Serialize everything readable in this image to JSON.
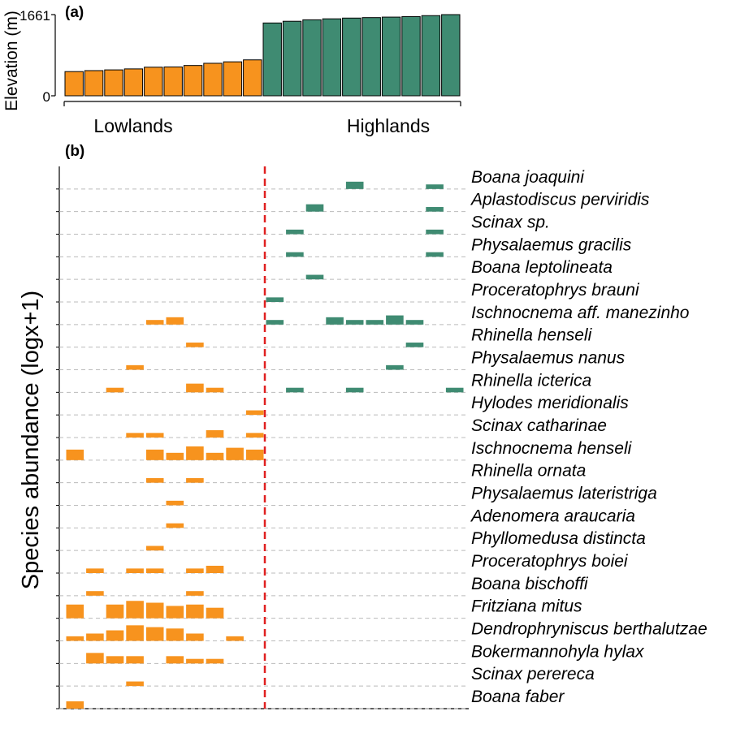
{
  "colors": {
    "lowlands": "#F7931E",
    "highlands": "#3F8B72",
    "divider": "#E02020",
    "grid": "#BBBBBB"
  },
  "chart_data": [
    {
      "panel": "(a)",
      "type": "bar",
      "ylabel": "Elevation (m)",
      "yticks": [
        "0",
        "1661"
      ],
      "ylim": [
        0,
        1661
      ],
      "groups": [
        "Lowlands",
        "Highlands"
      ],
      "sites": [
        1,
        2,
        3,
        4,
        5,
        6,
        7,
        8,
        9,
        10,
        11,
        12,
        13,
        14,
        15,
        16,
        17,
        18,
        19,
        20
      ],
      "group_of_site": [
        "Lowlands",
        "Lowlands",
        "Lowlands",
        "Lowlands",
        "Lowlands",
        "Lowlands",
        "Lowlands",
        "Lowlands",
        "Lowlands",
        "Lowlands",
        "Highlands",
        "Highlands",
        "Highlands",
        "Highlands",
        "Highlands",
        "Highlands",
        "Highlands",
        "Highlands",
        "Highlands",
        "Highlands"
      ],
      "values": [
        495,
        515,
        530,
        550,
        585,
        590,
        620,
        665,
        695,
        735,
        1490,
        1525,
        1555,
        1575,
        1590,
        1600,
        1610,
        1620,
        1640,
        1661
      ]
    },
    {
      "panel": "(b)",
      "type": "heatmap",
      "ylabel": "Species abundance (logx+1)",
      "divider_after_site": 10,
      "species": [
        "Boana joaquini",
        "Aplastodiscus perviridis",
        "Scinax sp.",
        "Physalaemus gracilis",
        "Boana leptolineata",
        "Proceratophrys brauni",
        "Ischnocnema aff. manezinho",
        "Rhinella henseli",
        "Physalaemus nanus",
        "Rhinella icterica",
        "Hylodes meridionalis",
        "Scinax catharinae",
        "Ischnocnema henseli",
        "Rhinella ornata",
        "Physalaemus lateristriga",
        "Adenomera araucaria",
        "Phyllomedusa distincta",
        "Proceratophrys boiei",
        "Boana bischoffi",
        "Fritziana mitus",
        "Dendrophryniscus berthalutzae",
        "Bokermannohyla hylax",
        "Scinax perereca",
        "Boana faber"
      ],
      "abundance": [
        [
          0,
          0,
          0,
          0,
          0,
          0,
          0,
          0,
          0,
          0,
          0,
          0,
          0,
          0,
          1.6,
          0,
          0,
          0,
          1,
          0
        ],
        [
          0,
          0,
          0,
          0,
          0,
          0,
          0,
          0,
          0,
          0,
          0,
          0,
          1.6,
          0,
          0,
          0,
          0,
          0,
          1,
          0
        ],
        [
          0,
          0,
          0,
          0,
          0,
          0,
          0,
          0,
          0,
          0,
          0,
          1,
          0,
          0,
          0,
          0,
          0,
          0,
          1,
          0
        ],
        [
          0,
          0,
          0,
          0,
          0,
          0,
          0,
          0,
          0,
          0,
          0,
          1,
          0,
          0,
          0,
          0,
          0,
          0,
          1,
          0
        ],
        [
          0,
          0,
          0,
          0,
          0,
          0,
          0,
          0,
          0,
          0,
          0,
          0,
          1,
          0,
          0,
          0,
          0,
          0,
          0,
          0
        ],
        [
          0,
          0,
          0,
          0,
          0,
          0,
          0,
          0,
          0,
          0,
          1,
          0,
          0,
          0,
          0,
          0,
          0,
          0,
          0,
          0
        ],
        [
          0,
          0,
          0,
          0,
          1,
          1.6,
          0,
          0,
          0,
          0,
          1,
          0,
          0,
          1.6,
          1,
          1,
          2,
          1,
          0,
          0
        ],
        [
          0,
          0,
          0,
          0,
          0,
          0,
          1,
          0,
          0,
          0,
          0,
          0,
          0,
          0,
          0,
          0,
          0,
          1,
          0,
          0
        ],
        [
          0,
          0,
          0,
          1,
          0,
          0,
          0,
          0,
          0,
          0,
          0,
          0,
          0,
          0,
          0,
          0,
          1,
          0,
          0,
          0
        ],
        [
          0,
          0,
          1,
          0,
          0,
          0,
          1.9,
          1,
          0,
          0,
          0,
          1,
          0,
          0,
          1,
          0,
          0,
          0,
          0,
          1
        ],
        [
          0,
          0,
          0,
          0,
          0,
          0,
          0,
          0,
          0,
          1,
          0,
          0,
          0,
          0,
          0,
          0,
          0,
          0,
          0,
          0
        ],
        [
          0,
          0,
          0,
          1,
          1,
          0,
          0,
          1.6,
          0,
          1,
          0,
          0,
          0,
          0,
          0,
          0,
          0,
          0,
          0,
          0
        ],
        [
          2.3,
          0,
          0,
          0,
          2.3,
          1.6,
          3,
          1.6,
          2.7,
          2.3,
          0,
          0,
          0,
          0,
          0,
          0,
          0,
          0,
          0,
          0
        ],
        [
          0,
          0,
          0,
          0,
          1,
          0,
          1,
          0,
          0,
          0,
          0,
          0,
          0,
          0,
          0,
          0,
          0,
          0,
          0,
          0
        ],
        [
          0,
          0,
          0,
          0,
          0,
          1,
          0,
          0,
          0,
          0,
          0,
          0,
          0,
          0,
          0,
          0,
          0,
          0,
          0,
          0
        ],
        [
          0,
          0,
          0,
          0,
          0,
          1,
          0,
          0,
          0,
          0,
          0,
          0,
          0,
          0,
          0,
          0,
          0,
          0,
          0,
          0
        ],
        [
          0,
          0,
          0,
          0,
          1,
          0,
          0,
          0,
          0,
          0,
          0,
          0,
          0,
          0,
          0,
          0,
          0,
          0,
          0,
          0
        ],
        [
          0,
          1,
          0,
          1,
          1,
          0,
          1,
          1.6,
          0,
          0,
          0,
          0,
          0,
          0,
          0,
          0,
          0,
          0,
          0,
          0
        ],
        [
          0,
          1,
          0,
          0,
          0,
          0,
          1,
          0,
          0,
          0,
          0,
          0,
          0,
          0,
          0,
          0,
          0,
          0,
          0,
          0
        ],
        [
          3,
          0,
          3,
          3.8,
          3.4,
          2.7,
          3,
          2.3,
          0,
          0,
          0,
          0,
          0,
          0,
          0,
          0,
          0,
          0,
          0,
          0
        ],
        [
          1,
          1.6,
          2.3,
          3.4,
          3,
          2.7,
          1.6,
          0,
          1,
          0,
          0,
          0,
          0,
          0,
          0,
          0,
          0,
          0,
          0,
          0
        ],
        [
          0,
          2.3,
          1.6,
          1.6,
          0,
          1.6,
          1,
          1,
          0,
          0,
          0,
          0,
          0,
          0,
          0,
          0,
          0,
          0,
          0,
          0
        ],
        [
          0,
          0,
          0,
          1,
          0,
          0,
          0,
          0,
          0,
          0,
          0,
          0,
          0,
          0,
          0,
          0,
          0,
          0,
          0,
          0
        ],
        [
          1.6,
          0,
          0,
          0,
          0,
          0,
          0,
          0,
          0,
          0,
          0,
          0,
          0,
          0,
          0,
          0,
          0,
          0,
          0,
          0
        ]
      ]
    }
  ]
}
